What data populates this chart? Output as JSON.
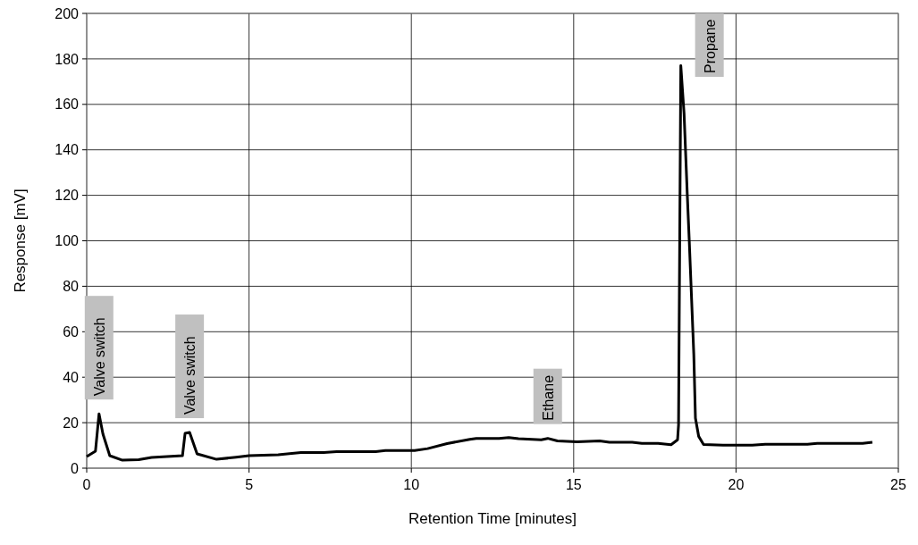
{
  "chart_data": {
    "type": "line",
    "xlabel": "Retention Time [minutes]",
    "ylabel": "Response [mV]",
    "xlim": [
      0,
      25
    ],
    "ylim": [
      0,
      200
    ],
    "xticks": [
      0,
      5,
      10,
      15,
      20,
      25
    ],
    "yticks": [
      0,
      20,
      40,
      60,
      80,
      100,
      120,
      140,
      160,
      180,
      200
    ],
    "grid": true,
    "marker": "none",
    "line_style": "solid",
    "series": [
      {
        "color": "#000000",
        "x": [
          0,
          0.27,
          0.38,
          0.5,
          0.71,
          1.1,
          1.6,
          2.0,
          2.95,
          3.03,
          3.17,
          3.4,
          4.0,
          4.6,
          5.0,
          5.9,
          6.6,
          7.3,
          7.7,
          8.9,
          9.2,
          10.1,
          10.5,
          11.1,
          11.8,
          12.0,
          12.7,
          13.0,
          13.3,
          14.0,
          14.2,
          14.5,
          15.1,
          15.8,
          16.1,
          16.8,
          17.1,
          17.6,
          18.0,
          18.2,
          18.23,
          18.3,
          18.4,
          18.5,
          18.56,
          18.7,
          18.75,
          18.85,
          19.0,
          19.6,
          20.5,
          20.9,
          22.2,
          22.5,
          23.9,
          24.2
        ],
        "values": [
          5.1,
          7.5,
          23.9,
          15,
          5.5,
          3.5,
          3.7,
          4.7,
          5.5,
          15.3,
          15.7,
          6.3,
          3.9,
          4.8,
          5.5,
          5.9,
          6.9,
          6.9,
          7.3,
          7.3,
          7.8,
          7.8,
          8.6,
          10.8,
          12.7,
          13.1,
          13.1,
          13.5,
          13.0,
          12.5,
          13.1,
          12.0,
          11.6,
          12.0,
          11.4,
          11.4,
          10.9,
          10.9,
          10.3,
          12.5,
          19,
          177,
          156,
          120,
          100,
          50,
          22,
          14,
          10.4,
          10.1,
          10.1,
          10.5,
          10.5,
          10.9,
          10.9,
          11.4
        ]
      }
    ],
    "annotations": [
      {
        "text": "Valve switch",
        "x": 0.38,
        "y": 23.9
      },
      {
        "text": "Valve switch",
        "x": 3.17,
        "y": 15.7
      },
      {
        "text": "Ethane",
        "x": 14.2,
        "y": 13.1
      },
      {
        "text": "Propane",
        "x": 18.3,
        "y": 177
      }
    ]
  }
}
